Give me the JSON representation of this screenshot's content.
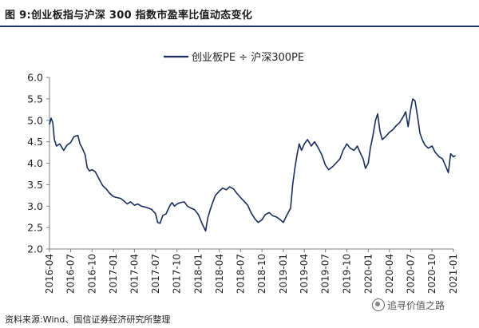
{
  "figure": {
    "title": "图 9:创业板指与沪深 300 指数市盈率比值动态变化",
    "source": "资料来源:Wind、国信证券经济研究所整理",
    "watermark": "追寻价值之路",
    "watermark_icon": "wechat-icon"
  },
  "chart_data": {
    "type": "line",
    "title": "",
    "xlabel": "",
    "ylabel": "",
    "ylim": [
      2.0,
      6.0
    ],
    "yticks": [
      "2.0",
      "2.5",
      "3.0",
      "3.5",
      "4.0",
      "4.5",
      "5.0",
      "5.5",
      "6.0"
    ],
    "xlim": [
      "2016-04",
      "2021-01"
    ],
    "xticks": [
      "2016-04",
      "2016-07",
      "2016-10",
      "2017-01",
      "2017-04",
      "2017-07",
      "2017-10",
      "2018-01",
      "2018-04",
      "2018-07",
      "2018-10",
      "2019-01",
      "2019-04",
      "2019-07",
      "2019-10",
      "2020-01",
      "2020-04",
      "2020-07",
      "2020-10",
      "2021-01"
    ],
    "grid": false,
    "legend_position": "top-center",
    "colors": {
      "line": "#1a2c5b",
      "axis": "#7f7f7f"
    },
    "series": [
      {
        "name": "创业板PE ÷ 沪深300PE",
        "points": [
          [
            "2016-04-01",
            4.9
          ],
          [
            "2016-04-08",
            5.05
          ],
          [
            "2016-04-15",
            4.95
          ],
          [
            "2016-04-22",
            4.55
          ],
          [
            "2016-05-01",
            4.4
          ],
          [
            "2016-05-15",
            4.45
          ],
          [
            "2016-06-01",
            4.3
          ],
          [
            "2016-06-15",
            4.42
          ],
          [
            "2016-07-01",
            4.48
          ],
          [
            "2016-07-15",
            4.62
          ],
          [
            "2016-08-01",
            4.65
          ],
          [
            "2016-08-10",
            4.45
          ],
          [
            "2016-08-20",
            4.35
          ],
          [
            "2016-09-01",
            4.2
          ],
          [
            "2016-09-10",
            3.9
          ],
          [
            "2016-09-20",
            3.82
          ],
          [
            "2016-10-01",
            3.85
          ],
          [
            "2016-10-15",
            3.8
          ],
          [
            "2016-11-01",
            3.62
          ],
          [
            "2016-11-15",
            3.48
          ],
          [
            "2016-12-01",
            3.4
          ],
          [
            "2016-12-15",
            3.3
          ],
          [
            "2017-01-01",
            3.22
          ],
          [
            "2017-01-15",
            3.2
          ],
          [
            "2017-02-01",
            3.18
          ],
          [
            "2017-02-15",
            3.12
          ],
          [
            "2017-03-01",
            3.05
          ],
          [
            "2017-03-15",
            3.1
          ],
          [
            "2017-04-01",
            3.02
          ],
          [
            "2017-04-15",
            3.05
          ],
          [
            "2017-05-01",
            3.0
          ],
          [
            "2017-05-15",
            2.98
          ],
          [
            "2017-06-01",
            2.95
          ],
          [
            "2017-06-15",
            2.92
          ],
          [
            "2017-07-01",
            2.82
          ],
          [
            "2017-07-10",
            2.62
          ],
          [
            "2017-07-20",
            2.6
          ],
          [
            "2017-08-01",
            2.78
          ],
          [
            "2017-08-15",
            2.82
          ],
          [
            "2017-09-01",
            3.02
          ],
          [
            "2017-09-10",
            3.08
          ],
          [
            "2017-09-20",
            3.0
          ],
          [
            "2017-10-01",
            3.05
          ],
          [
            "2017-10-15",
            3.08
          ],
          [
            "2017-11-01",
            3.1
          ],
          [
            "2017-11-15",
            3.0
          ],
          [
            "2017-12-01",
            2.95
          ],
          [
            "2017-12-15",
            2.92
          ],
          [
            "2018-01-01",
            2.8
          ],
          [
            "2018-01-10",
            2.68
          ],
          [
            "2018-01-20",
            2.55
          ],
          [
            "2018-02-01",
            2.42
          ],
          [
            "2018-02-10",
            2.72
          ],
          [
            "2018-02-20",
            2.9
          ],
          [
            "2018-03-01",
            3.05
          ],
          [
            "2018-03-15",
            3.25
          ],
          [
            "2018-04-01",
            3.35
          ],
          [
            "2018-04-15",
            3.42
          ],
          [
            "2018-05-01",
            3.38
          ],
          [
            "2018-05-15",
            3.45
          ],
          [
            "2018-06-01",
            3.4
          ],
          [
            "2018-06-15",
            3.3
          ],
          [
            "2018-07-01",
            3.2
          ],
          [
            "2018-07-15",
            3.12
          ],
          [
            "2018-08-01",
            3.02
          ],
          [
            "2018-08-15",
            2.85
          ],
          [
            "2018-09-01",
            2.7
          ],
          [
            "2018-09-15",
            2.62
          ],
          [
            "2018-10-01",
            2.68
          ],
          [
            "2018-10-15",
            2.8
          ],
          [
            "2018-11-01",
            2.85
          ],
          [
            "2018-11-15",
            2.78
          ],
          [
            "2018-12-01",
            2.75
          ],
          [
            "2018-12-15",
            2.7
          ],
          [
            "2019-01-01",
            2.62
          ],
          [
            "2019-01-15",
            2.78
          ],
          [
            "2019-02-01",
            2.95
          ],
          [
            "2019-02-10",
            3.5
          ],
          [
            "2019-02-20",
            3.9
          ],
          [
            "2019-03-01",
            4.2
          ],
          [
            "2019-03-10",
            4.45
          ],
          [
            "2019-03-20",
            4.3
          ],
          [
            "2019-04-01",
            4.45
          ],
          [
            "2019-04-15",
            4.55
          ],
          [
            "2019-05-01",
            4.4
          ],
          [
            "2019-05-15",
            4.5
          ],
          [
            "2019-06-01",
            4.35
          ],
          [
            "2019-06-15",
            4.2
          ],
          [
            "2019-07-01",
            3.95
          ],
          [
            "2019-07-15",
            3.85
          ],
          [
            "2019-08-01",
            3.92
          ],
          [
            "2019-08-15",
            4.0
          ],
          [
            "2019-09-01",
            4.1
          ],
          [
            "2019-09-15",
            4.3
          ],
          [
            "2019-10-01",
            4.45
          ],
          [
            "2019-10-15",
            4.35
          ],
          [
            "2019-11-01",
            4.3
          ],
          [
            "2019-11-15",
            4.4
          ],
          [
            "2019-12-01",
            4.2
          ],
          [
            "2019-12-10",
            4.1
          ],
          [
            "2019-12-20",
            3.88
          ],
          [
            "2020-01-01",
            4.0
          ],
          [
            "2020-01-10",
            4.35
          ],
          [
            "2020-01-20",
            4.62
          ],
          [
            "2020-02-01",
            5.0
          ],
          [
            "2020-02-10",
            5.15
          ],
          [
            "2020-02-20",
            4.75
          ],
          [
            "2020-03-01",
            4.55
          ],
          [
            "2020-03-15",
            4.62
          ],
          [
            "2020-04-01",
            4.72
          ],
          [
            "2020-04-15",
            4.78
          ],
          [
            "2020-05-01",
            4.88
          ],
          [
            "2020-05-15",
            4.95
          ],
          [
            "2020-06-01",
            5.1
          ],
          [
            "2020-06-10",
            5.2
          ],
          [
            "2020-06-20",
            4.85
          ],
          [
            "2020-07-01",
            5.25
          ],
          [
            "2020-07-10",
            5.5
          ],
          [
            "2020-07-20",
            5.45
          ],
          [
            "2020-08-01",
            5.05
          ],
          [
            "2020-08-10",
            4.7
          ],
          [
            "2020-08-20",
            4.55
          ],
          [
            "2020-09-01",
            4.42
          ],
          [
            "2020-09-15",
            4.35
          ],
          [
            "2020-10-01",
            4.4
          ],
          [
            "2020-10-15",
            4.25
          ],
          [
            "2020-11-01",
            4.15
          ],
          [
            "2020-11-15",
            4.1
          ],
          [
            "2020-12-01",
            3.9
          ],
          [
            "2020-12-10",
            3.78
          ],
          [
            "2020-12-20",
            4.22
          ],
          [
            "2021-01-01",
            4.15
          ],
          [
            "2021-01-10",
            4.18
          ]
        ]
      }
    ]
  }
}
